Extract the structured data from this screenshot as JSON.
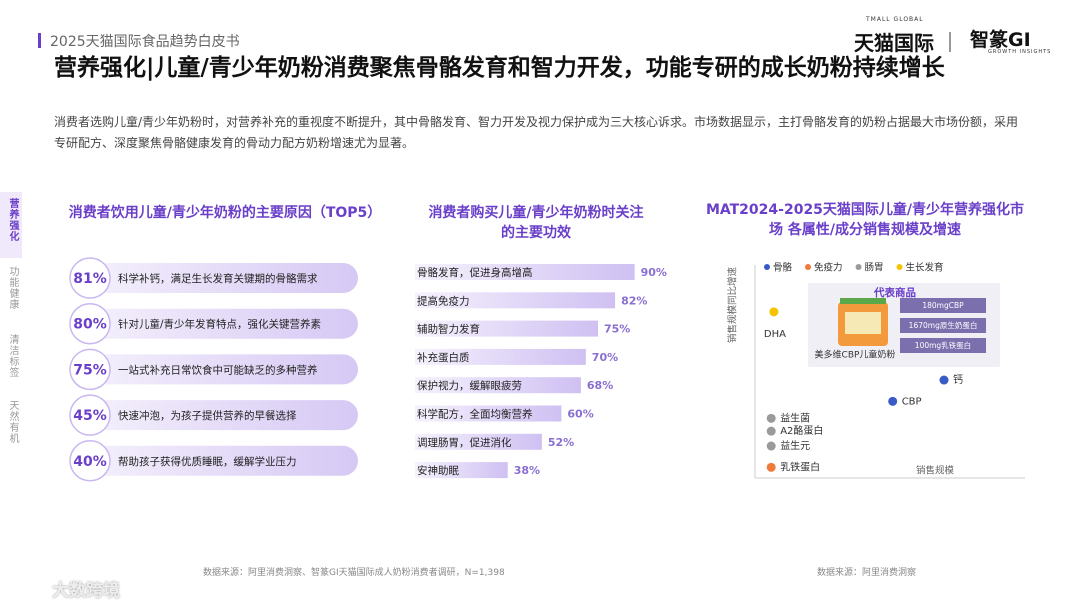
{
  "header": {
    "report": "2025天猫国际食品趋势白皮书",
    "logo_tmall": "天猫国际",
    "logo_tmall_en": "TMALL GLOBAL",
    "logo_gi": "智篆GI",
    "logo_gi_en": "GROWTH INSIGHTS"
  },
  "title": "营养强化|儿童/青少年奶粉消费聚焦骨骼发育和智力开发，功能专研的成长奶粉持续增长",
  "description": "消费者选购儿童/青少年奶粉时，对营养补充的重视度不断提升，其中骨骼发育、智力开发及视力保护成为三大核心诉求。市场数据显示，主打骨骼发育的奶粉占据最大市场份额，采用专研配方、深度聚焦骨骼健康发育的骨动力配方奶粉增速尤为显著。",
  "side_nav": [
    "营养强化",
    "功能健康",
    "清洁标签",
    "天然有机"
  ],
  "chart_data": [
    {
      "type": "ranking",
      "title": "消费者饮用儿童/青少年奶粉的主要原因（TOP5）",
      "categories": [
        "科学补钙，满足生长发育关键期的骨骼需求",
        "针对儿童/青少年发育特点，强化关键营养素",
        "一站式补充日常饮食中可能缺乏的多种营养",
        "快速冲泡，为孩子提供营养的早餐选择",
        "帮助孩子获得优质睡眠，缓解学业压力"
      ],
      "values": [
        81,
        80,
        75,
        45,
        40
      ],
      "value_labels": [
        "81%",
        "80%",
        "75%",
        "45%",
        "40%"
      ],
      "color": "#6a3fc9"
    },
    {
      "type": "bar",
      "title": "消费者购买儿童/青少年奶粉时关注的主要功效",
      "categories": [
        "骨骼发育，促进身高增高",
        "提高免疫力",
        "辅助智力发育",
        "补充蛋白质",
        "保护视力，缓解眼疲劳",
        "科学配方，全面均衡营养",
        "调理肠胃，促进消化",
        "安神助眠"
      ],
      "values": [
        90,
        82,
        75,
        70,
        68,
        60,
        52,
        38
      ],
      "value_labels": [
        "90%",
        "82%",
        "75%",
        "70%",
        "68%",
        "60%",
        "52%",
        "38%"
      ],
      "color": "#d9cdf5"
    },
    {
      "type": "scatter",
      "title": "MAT2024-2025天猫国际儿童/青少年营养强化市场 各属性/成分销售规模及增速",
      "x_label": "销售规模",
      "y_label": "销售规模同比增速",
      "xlim": [
        0,
        100
      ],
      "ylim": [
        0,
        100
      ],
      "series": [
        {
          "name": "骨骼",
          "color": "#3a5bc7",
          "x": [
            70,
            51
          ],
          "values": [
            46,
            36
          ],
          "labels": [
            "钙",
            "CBP"
          ]
        },
        {
          "name": "免疫力",
          "color": "#f07a3a",
          "x": [
            6
          ],
          "values": [
            5
          ],
          "labels": [
            "乳铁蛋白"
          ]
        },
        {
          "name": "肠胃",
          "color": "#9a9a9a",
          "x": [
            6,
            6,
            6
          ],
          "values": [
            28,
            22,
            15
          ],
          "labels": [
            "益生菌",
            "A2酪蛋白",
            "益生元"
          ]
        },
        {
          "name": "生长发育",
          "color": "#f5c400",
          "x": [
            7
          ],
          "values": [
            78
          ],
          "labels": [
            "DHA"
          ]
        }
      ],
      "product": {
        "heading": "代表商品",
        "name": "美多维CBP儿童奶粉",
        "features": [
          "180mgCBP",
          "1670mg原生奶蛋白",
          "100mg乳铁蛋白"
        ]
      }
    }
  ],
  "sources": [
    "数据来源：阿里消费洞察、智篆GI天猫国际成人奶粉消费者调研，N=1,398",
    "数据来源：阿里消费洞察"
  ],
  "watermark": "大数跨境"
}
